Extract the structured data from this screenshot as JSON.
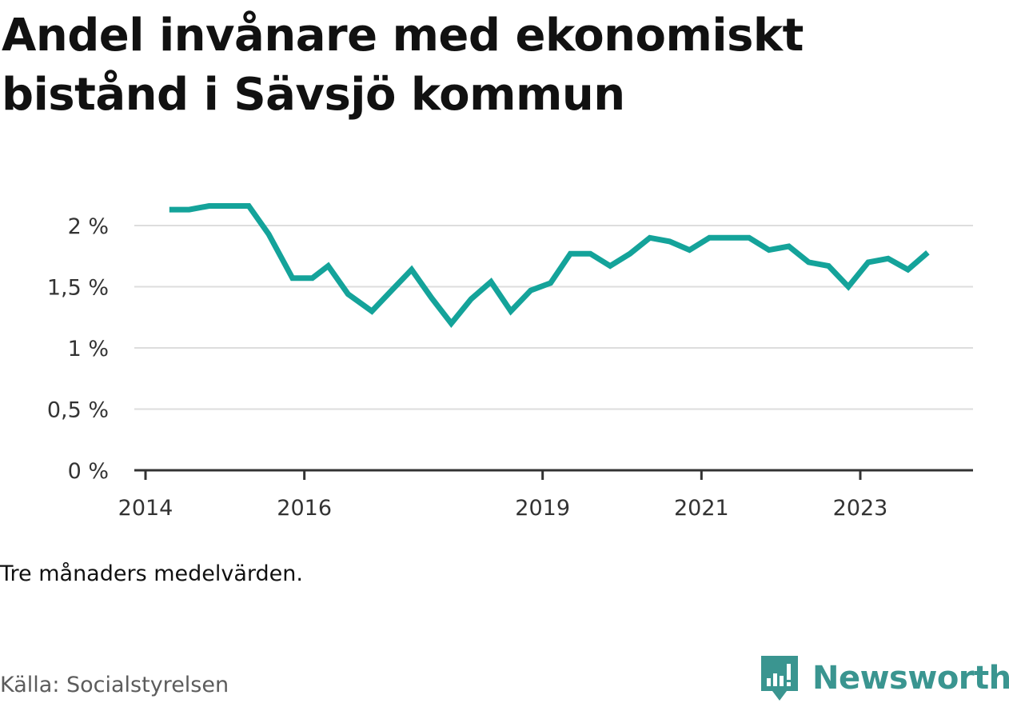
{
  "title": "Andel invånare med ekonomiskt bistånd i Sävsjö kommun",
  "note": "Tre månaders medelvärden.",
  "source": "Källa: Socialstyrelsen",
  "brand": {
    "name": "Newsworthy",
    "color": "#3a9590"
  },
  "colors": {
    "line": "#14a39a",
    "grid": "#dddddd",
    "axis": "#333333",
    "text": "#333333"
  },
  "chart_data": {
    "type": "line",
    "title": "Andel invånare med ekonomiskt bistånd i Sävsjö kommun",
    "xlabel": "",
    "ylabel": "",
    "unit": "%",
    "ylim": [
      0,
      2.3
    ],
    "xlim": [
      2014.0,
      2024.5
    ],
    "grid": true,
    "y_ticks": [
      {
        "value": 0,
        "label": "0 %"
      },
      {
        "value": 0.5,
        "label": "0,5 %"
      },
      {
        "value": 1,
        "label": "1 %"
      },
      {
        "value": 1.5,
        "label": "1,5 %"
      },
      {
        "value": 2,
        "label": "2 %"
      }
    ],
    "x_ticks": [
      {
        "value": 2014.0,
        "label": "2014"
      },
      {
        "value": 2016.0,
        "label": "2016"
      },
      {
        "value": 2019.0,
        "label": "2019"
      },
      {
        "value": 2021.0,
        "label": "2021"
      },
      {
        "value": 2023.0,
        "label": "2023"
      }
    ],
    "series": [
      {
        "name": "Andel invånare med ekonomiskt bistånd",
        "x": [
          2014.3,
          2014.55,
          2014.8,
          2015.05,
          2015.3,
          2015.55,
          2015.85,
          2016.1,
          2016.3,
          2016.55,
          2016.85,
          2017.1,
          2017.35,
          2017.6,
          2017.85,
          2018.1,
          2018.35,
          2018.6,
          2018.85,
          2019.1,
          2019.35,
          2019.6,
          2019.85,
          2020.1,
          2020.35,
          2020.6,
          2020.85,
          2021.1,
          2021.35,
          2021.6,
          2021.85,
          2022.1,
          2022.35,
          2022.6,
          2022.85,
          2023.1,
          2023.35,
          2023.6,
          2023.85
        ],
        "values": [
          2.13,
          2.13,
          2.16,
          2.16,
          2.16,
          1.93,
          1.57,
          1.57,
          1.67,
          1.44,
          1.3,
          1.47,
          1.64,
          1.41,
          1.2,
          1.4,
          1.54,
          1.3,
          1.47,
          1.53,
          1.77,
          1.77,
          1.67,
          1.77,
          1.9,
          1.87,
          1.8,
          1.9,
          1.9,
          1.9,
          1.8,
          1.83,
          1.7,
          1.67,
          1.5,
          1.7,
          1.73,
          1.64,
          1.78
        ]
      }
    ]
  }
}
